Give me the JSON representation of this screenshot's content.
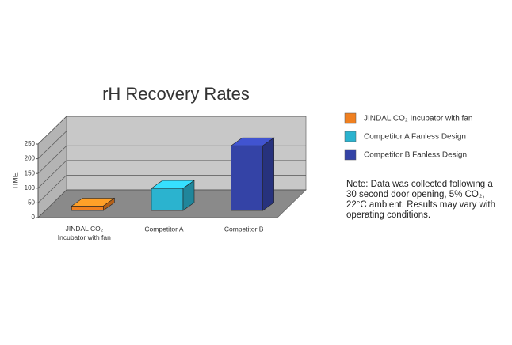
{
  "chart_data": {
    "type": "bar3d",
    "title": "rH Recovery Rates",
    "y_label": "TIME",
    "categories": [
      "JINDAL CO₂ Incubator with fan",
      "Competitor A",
      "Competitor B"
    ],
    "values": [
      15,
      75,
      220
    ],
    "colors": [
      "#f08020",
      "#2bb3cf",
      "#3443a6"
    ],
    "legend": [
      "JINDAL CO₂ Incubator with fan",
      "Competitor A Fanless Design",
      "Competitor B Fanless Design"
    ],
    "ylim": [
      0,
      250
    ],
    "yticks": [
      0,
      50,
      100,
      150,
      200,
      250
    ],
    "grid": true,
    "note": [
      "Note: Data was collected following a",
      "30 second door opening, 5% CO₂,",
      "22°C ambient. Results may vary with",
      "operating conditions."
    ]
  }
}
